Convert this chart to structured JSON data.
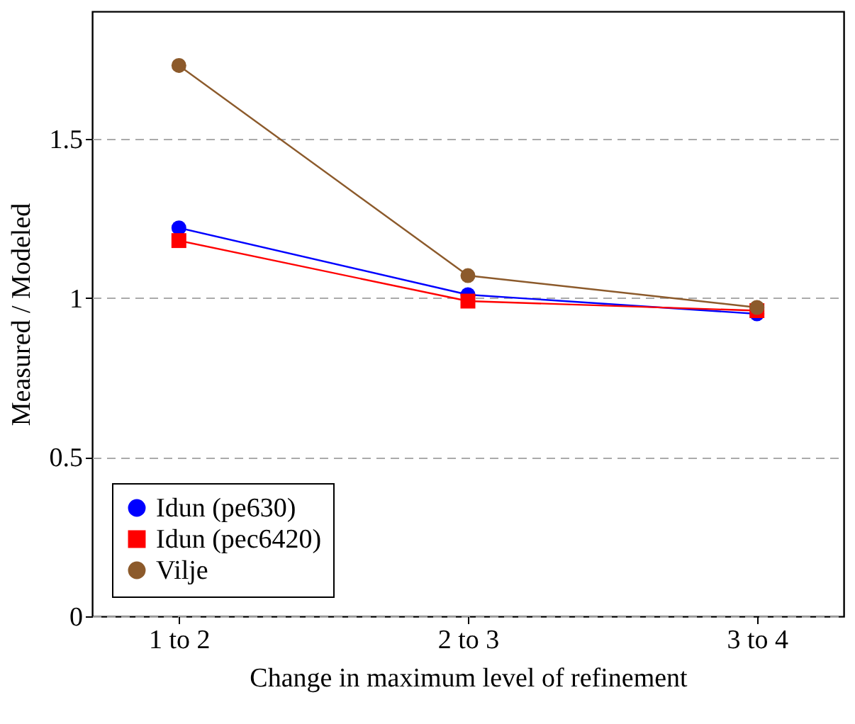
{
  "chart_data": {
    "type": "line",
    "xlabel": "Change in maximum level of refinement",
    "ylabel": "Measured / Modeled",
    "categories": [
      "1 to 2",
      "2 to 3",
      "3 to 4"
    ],
    "series": [
      {
        "name": "Idun (pe630)",
        "color": "#0000ff",
        "marker": "circle",
        "values": [
          1.22,
          1.01,
          0.95
        ]
      },
      {
        "name": "Idun (pec6420)",
        "color": "#ff0000",
        "marker": "square",
        "values": [
          1.18,
          0.99,
          0.96
        ]
      },
      {
        "name": "Vilje",
        "color": "#8c5a2b",
        "marker": "circle",
        "values": [
          1.73,
          1.07,
          0.97
        ]
      }
    ],
    "ylim": [
      0,
      1.9
    ],
    "yticks": [
      0,
      0.5,
      1,
      1.5
    ],
    "grid": "y",
    "legend": "bottom left",
    "line_style": "solid"
  }
}
